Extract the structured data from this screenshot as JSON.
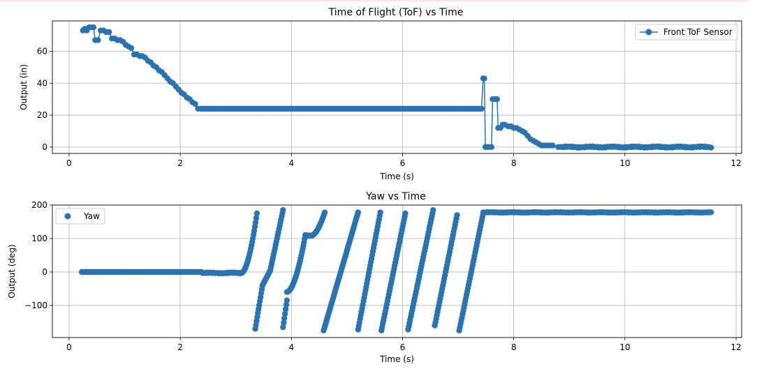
{
  "charts": [
    {
      "id": "tof",
      "type": "line",
      "title": "Time of Flight (ToF) vs Time",
      "xlabel": "Time (s)",
      "ylabel": "Output (in)",
      "xlim": [
        -0.3,
        12.1
      ],
      "ylim": [
        -4,
        79
      ],
      "xticks": [
        0,
        2,
        4,
        6,
        8,
        10,
        12
      ],
      "yticks": [
        0,
        20,
        40,
        60
      ],
      "xtick_labels": [
        "0",
        "2",
        "4",
        "6",
        "8",
        "10",
        "12"
      ],
      "ytick_labels": [
        "0",
        "20",
        "40",
        "60"
      ],
      "grid": true,
      "legend": {
        "position": "top-right",
        "label": "Front ToF Sensor",
        "marker": "line-circle"
      },
      "color": "#2b73ae",
      "markers": true,
      "line": true,
      "segments": [
        {
          "x": [
            0.25,
            7.38
          ],
          "y": [
            73,
            24
          ],
          "kind": "ramp",
          "points": [
            [
              0.25,
              73
            ],
            [
              0.28,
              74
            ],
            [
              0.32,
              73
            ],
            [
              0.36,
              75
            ],
            [
              0.4,
              75
            ],
            [
              0.44,
              75
            ],
            [
              0.47,
              67
            ],
            [
              0.52,
              67
            ],
            [
              0.57,
              73
            ],
            [
              0.62,
              73
            ],
            [
              0.67,
              72
            ],
            [
              0.72,
              72
            ],
            [
              0.77,
              68
            ],
            [
              0.82,
              68
            ],
            [
              0.87,
              67
            ],
            [
              0.92,
              67
            ],
            [
              0.97,
              66
            ],
            [
              1.02,
              64
            ],
            [
              1.07,
              63
            ],
            [
              1.12,
              62
            ],
            [
              1.17,
              58
            ],
            [
              1.22,
              58
            ],
            [
              1.27,
              57
            ],
            [
              1.32,
              57
            ],
            [
              1.37,
              56
            ],
            [
              1.42,
              54
            ],
            [
              1.47,
              53
            ],
            [
              1.52,
              51
            ],
            [
              1.57,
              50
            ],
            [
              1.62,
              48
            ],
            [
              1.67,
              47
            ],
            [
              1.72,
              45
            ],
            [
              1.77,
              43
            ],
            [
              1.82,
              41
            ],
            [
              1.87,
              40
            ],
            [
              1.92,
              38
            ],
            [
              1.97,
              36
            ],
            [
              2.02,
              34
            ],
            [
              2.07,
              33
            ],
            [
              2.12,
              31
            ],
            [
              2.17,
              30
            ],
            [
              2.22,
              28
            ],
            [
              2.27,
              27
            ],
            [
              2.32,
              24
            ],
            [
              2.37,
              24
            ]
          ]
        },
        {
          "kind": "flat",
          "x_start": 2.37,
          "x_end": 7.4,
          "y": 24
        },
        {
          "kind": "points",
          "points": [
            [
              7.42,
              24
            ],
            [
              7.45,
              43
            ],
            [
              7.47,
              43
            ],
            [
              7.49,
              0
            ],
            [
              7.52,
              0
            ],
            [
              7.56,
              0
            ],
            [
              7.6,
              0
            ],
            [
              7.62,
              30
            ],
            [
              7.66,
              30
            ],
            [
              7.7,
              30
            ],
            [
              7.72,
              12
            ],
            [
              7.76,
              12
            ],
            [
              7.8,
              14
            ],
            [
              7.84,
              14
            ],
            [
              7.9,
              13
            ],
            [
              7.95,
              13
            ],
            [
              8.0,
              12
            ],
            [
              8.05,
              12
            ],
            [
              8.1,
              11
            ],
            [
              8.15,
              10
            ],
            [
              8.2,
              9
            ],
            [
              8.25,
              7
            ],
            [
              8.3,
              5
            ],
            [
              8.35,
              4
            ],
            [
              8.4,
              3
            ],
            [
              8.45,
              2
            ],
            [
              8.5,
              1
            ],
            [
              8.55,
              1
            ],
            [
              8.6,
              1
            ],
            [
              8.65,
              1
            ],
            [
              8.7,
              1
            ],
            [
              8.8,
              0
            ]
          ]
        },
        {
          "kind": "flat_noise",
          "x_start": 8.85,
          "x_end": 11.55,
          "y": 0,
          "amp": 0.4
        }
      ]
    },
    {
      "id": "yaw",
      "type": "scatter",
      "title": "Yaw vs Time",
      "xlabel": "Time (s)",
      "ylabel": "Output (deg)",
      "xlim": [
        -0.3,
        12.1
      ],
      "ylim": [
        -196,
        200
      ],
      "xticks": [
        0,
        2,
        4,
        6,
        8,
        10,
        12
      ],
      "yticks": [
        -100,
        0,
        100,
        200
      ],
      "xtick_labels": [
        "0",
        "2",
        "4",
        "6",
        "8",
        "10",
        "12"
      ],
      "ytick_labels": [
        "−100",
        "0",
        "100",
        "200"
      ],
      "grid": true,
      "legend": {
        "position": "top-left",
        "label": "Yaw",
        "marker": "circle"
      },
      "color": "#2b73ae",
      "markers": true,
      "line": false,
      "segments": [
        {
          "kind": "flat",
          "x_start": 0.23,
          "x_end": 2.4,
          "y": 0
        },
        {
          "kind": "flat_noise",
          "x_start": 2.4,
          "x_end": 3.1,
          "y": -3,
          "amp": 1.5
        },
        {
          "kind": "curve_up",
          "x_start": 3.1,
          "x_end": 3.38,
          "y_start": -3,
          "y_end": 175
        },
        {
          "kind": "ramp",
          "x_start": 3.35,
          "x_end": 3.48,
          "y_start": -170,
          "y_end": -40
        },
        {
          "kind": "ramp",
          "x_start": 3.48,
          "x_end": 3.62,
          "y_start": -40,
          "y_end": 5
        },
        {
          "kind": "ramp",
          "x_start": 3.62,
          "x_end": 3.85,
          "y_start": 5,
          "y_end": 185
        },
        {
          "kind": "ramp",
          "x_start": 3.85,
          "x_end": 3.92,
          "y_start": -165,
          "y_end": -85
        },
        {
          "kind": "curve_up",
          "x_start": 3.92,
          "x_end": 4.25,
          "y_start": -60,
          "y_end": 110
        },
        {
          "kind": "ramp",
          "x_start": 4.25,
          "x_end": 4.35,
          "y_start": 110,
          "y_end": 108
        },
        {
          "kind": "curve_up",
          "x_start": 4.35,
          "x_end": 4.6,
          "y_start": 108,
          "y_end": 178
        },
        {
          "kind": "ramp",
          "x_start": 4.58,
          "x_end": 5.2,
          "y_start": -175,
          "y_end": 178
        },
        {
          "kind": "ramp",
          "x_start": 5.2,
          "x_end": 5.6,
          "y_start": -172,
          "y_end": 178
        },
        {
          "kind": "ramp",
          "x_start": 5.62,
          "x_end": 6.05,
          "y_start": -175,
          "y_end": 175
        },
        {
          "kind": "ramp",
          "x_start": 6.1,
          "x_end": 6.55,
          "y_start": -172,
          "y_end": 185
        },
        {
          "kind": "ramp",
          "x_start": 6.58,
          "x_end": 6.98,
          "y_start": -160,
          "y_end": 170
        },
        {
          "kind": "ramp",
          "x_start": 7.02,
          "x_end": 7.45,
          "y_start": -175,
          "y_end": 175
        },
        {
          "kind": "flat_noise",
          "x_start": 7.45,
          "x_end": 11.55,
          "y": 178,
          "amp": 0.8
        }
      ]
    }
  ]
}
